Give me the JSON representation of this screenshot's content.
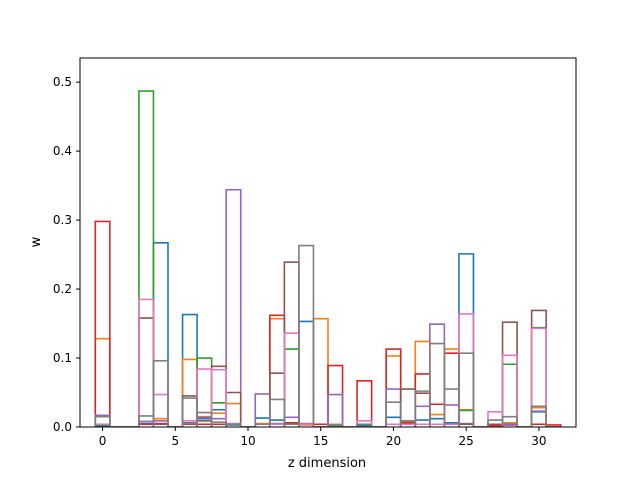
{
  "chart_data": {
    "type": "step-histogram",
    "xlabel": "z dimension",
    "ylabel": "w",
    "xlim": [
      -1.55,
      32.55
    ],
    "ylim": [
      0,
      0.535
    ],
    "xticks": [
      0,
      5,
      10,
      15,
      20,
      25,
      30
    ],
    "xtick_labels": [
      "0",
      "5",
      "10",
      "15",
      "20",
      "25",
      "30"
    ],
    "yticks": [
      0.0,
      0.1,
      0.2,
      0.3,
      0.4,
      0.5
    ],
    "ytick_labels": [
      "0.0",
      "0.1",
      "0.2",
      "0.3",
      "0.4",
      "0.5"
    ],
    "x": [
      0,
      1,
      2,
      3,
      4,
      5,
      6,
      7,
      8,
      9,
      10,
      11,
      12,
      13,
      14,
      15,
      16,
      17,
      18,
      19,
      20,
      21,
      22,
      23,
      24,
      25,
      26,
      27,
      28,
      29,
      30,
      31
    ],
    "bar_width": 1,
    "series": [
      {
        "color": "#1f77b4",
        "values": [
          0.001,
          0,
          0,
          0.005,
          0.267,
          0,
          0.163,
          0.012,
          0.025,
          0.003,
          0,
          0.013,
          0.01,
          0.005,
          0.153,
          0,
          0.004,
          0,
          0.002,
          0,
          0.014,
          0.008,
          0.01,
          0.012,
          0.006,
          0.251,
          0,
          0.003,
          0.005,
          0,
          0.022,
          0
        ]
      },
      {
        "color": "#ff7f0e",
        "values": [
          0.128,
          0,
          0,
          0.004,
          0.012,
          0,
          0.098,
          0.015,
          0.02,
          0.034,
          0,
          0.005,
          0.157,
          0.004,
          0.003,
          0.157,
          0.002,
          0,
          0,
          0,
          0.103,
          0.007,
          0.124,
          0.018,
          0.113,
          0.025,
          0,
          0.004,
          0.006,
          0,
          0.028,
          0
        ]
      },
      {
        "color": "#2ca02c",
        "values": [
          0.003,
          0,
          0,
          0.487,
          0.004,
          0,
          0.006,
          0.1,
          0.035,
          0.004,
          0,
          0.004,
          0.004,
          0.113,
          0.004,
          0,
          0.002,
          0,
          0,
          0,
          0.004,
          0.006,
          0.004,
          0.004,
          0.004,
          0.024,
          0,
          0.003,
          0.091,
          0,
          0.144,
          0
        ]
      },
      {
        "color": "#d62728",
        "values": [
          0.298,
          0,
          0,
          0.004,
          0.005,
          0,
          0.004,
          0.004,
          0.004,
          0.004,
          0,
          0.004,
          0.162,
          0.006,
          0.004,
          0.004,
          0.089,
          0,
          0.067,
          0,
          0.113,
          0.006,
          0.077,
          0.033,
          0.107,
          0.004,
          0,
          0.002,
          0.003,
          0,
          0.004,
          0.003
        ]
      },
      {
        "color": "#9467bd",
        "values": [
          0.017,
          0,
          0,
          0.008,
          0.009,
          0,
          0.005,
          0.014,
          0.012,
          0.344,
          0,
          0.048,
          0.005,
          0.014,
          0.005,
          0,
          0.047,
          0,
          0.004,
          0,
          0.055,
          0.004,
          0.03,
          0.149,
          0.032,
          0.005,
          0,
          0.004,
          0.003,
          0,
          0.023,
          0
        ]
      },
      {
        "color": "#8c564b",
        "values": [
          0.004,
          0,
          0,
          0.158,
          0.004,
          0,
          0.045,
          0.009,
          0.088,
          0.05,
          0,
          0.004,
          0.078,
          0.239,
          0.004,
          0,
          0.004,
          0,
          0.004,
          0,
          0.004,
          0.055,
          0.049,
          0.004,
          0.004,
          0.004,
          0,
          0.004,
          0.152,
          0,
          0.169,
          0
        ]
      },
      {
        "color": "#e377c2",
        "values": [
          0.004,
          0,
          0,
          0.185,
          0.047,
          0,
          0.009,
          0.084,
          0.083,
          0.005,
          0,
          0.004,
          0.004,
          0.136,
          0.004,
          0,
          0.004,
          0,
          0.009,
          0,
          0.004,
          0.004,
          0.004,
          0.004,
          0.004,
          0.164,
          0,
          0.022,
          0.104,
          0,
          0.143,
          0
        ]
      },
      {
        "color": "#7f7f7f",
        "values": [
          0.015,
          0,
          0,
          0.016,
          0.096,
          0,
          0.042,
          0.021,
          0.007,
          0.004,
          0,
          0.004,
          0.04,
          0.004,
          0.263,
          0,
          0.003,
          0,
          0.004,
          0,
          0.036,
          0.009,
          0.052,
          0.121,
          0.055,
          0.107,
          0,
          0.01,
          0.015,
          0,
          0.03,
          0
        ]
      }
    ]
  }
}
